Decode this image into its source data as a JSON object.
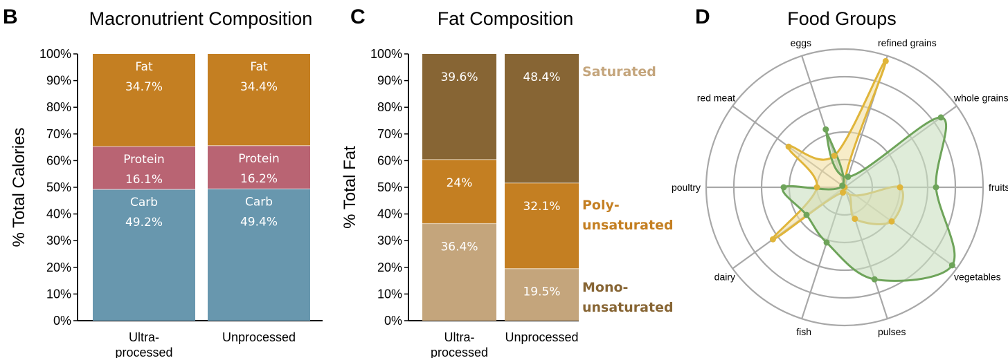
{
  "chart_data": [
    {
      "panel": "B",
      "type": "bar",
      "stacked": true,
      "title": "Macronutrient Composition",
      "ylabel": "% Total Calories",
      "ylim": [
        0,
        100
      ],
      "yticks": [
        "0%",
        "10%",
        "20%",
        "30%",
        "40%",
        "50%",
        "60%",
        "70%",
        "80%",
        "90%",
        "100%"
      ],
      "categories": [
        "Ultra-\nprocessed",
        "Unprocessed"
      ],
      "series": [
        {
          "name": "Carb",
          "color": "#6897ae",
          "values": [
            49.2,
            49.4
          ],
          "labels": [
            "49.2%",
            "49.4%"
          ]
        },
        {
          "name": "Protein",
          "color": "#b96473",
          "values": [
            16.1,
            16.2
          ],
          "labels": [
            "16.1%",
            "16.2%"
          ]
        },
        {
          "name": "Fat",
          "color": "#c47f22",
          "values": [
            34.7,
            34.4
          ],
          "labels": [
            "34.7%",
            "34.4%"
          ]
        }
      ]
    },
    {
      "panel": "C",
      "type": "bar",
      "stacked": true,
      "title": "Fat Composition",
      "ylabel": "% Total Fat",
      "ylim": [
        0,
        100
      ],
      "yticks": [
        "0%",
        "10%",
        "20%",
        "30%",
        "40%",
        "50%",
        "60%",
        "70%",
        "80%",
        "90%",
        "100%"
      ],
      "categories": [
        "Ultra-\nprocessed",
        "Unprocessed"
      ],
      "series": [
        {
          "name": "Saturated",
          "legend": "Saturated",
          "color": "#c4a57c",
          "values": [
            36.4,
            19.5
          ],
          "labels": [
            "36.4%",
            "19.5%"
          ]
        },
        {
          "name": "Poly-unsaturated",
          "legend": "Poly-\nunsaturated",
          "color": "#c47f22",
          "values": [
            24,
            32.1
          ],
          "labels": [
            "24%",
            "32.1%"
          ]
        },
        {
          "name": "Mono-unsaturated",
          "legend": "Mono-\nunsaturated",
          "color": "#876534",
          "values": [
            39.6,
            48.4
          ],
          "labels": [
            "39.6%",
            "48.4%"
          ]
        }
      ]
    },
    {
      "panel": "D",
      "type": "radar",
      "title": "Food Groups",
      "axes": [
        "fruits",
        "whole grains",
        "refined grains",
        "eggs",
        "red meat",
        "poultry",
        "dairy",
        "fish",
        "pulses",
        "vegetables"
      ],
      "rmax": 5,
      "series": [
        {
          "name": "Ultra-processed",
          "color": "#e0b53a",
          "fill": "#f2dfa4",
          "values": [
            2,
            0,
            4.8,
            1.2,
            2.5,
            1,
            3.2,
            0.2,
            1.2,
            2.1
          ]
        },
        {
          "name": "Unprocessed",
          "color": "#6ea45a",
          "fill": "#c9dfc0",
          "values": [
            3.3,
            4.3,
            0.4,
            2.2,
            0.1,
            2.2,
            1.7,
            2.1,
            3.5,
            4.8
          ]
        }
      ]
    }
  ]
}
